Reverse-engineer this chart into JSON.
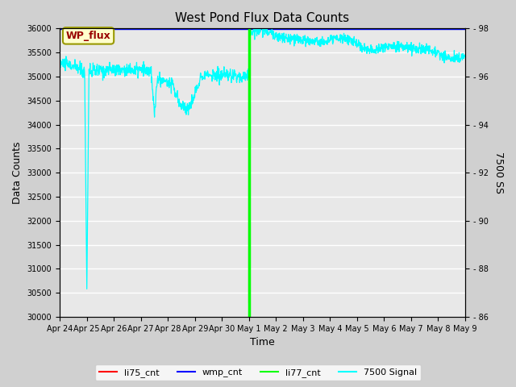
{
  "title": "West Pond Flux Data Counts",
  "xlabel": "Time",
  "ylabel_left": "Data Counts",
  "ylabel_right": "7500 SS",
  "ylim_left": [
    30000,
    36000
  ],
  "ylim_right": [
    86,
    98
  ],
  "yticks_left": [
    30000,
    30500,
    31000,
    31500,
    32000,
    32500,
    33000,
    33500,
    34000,
    34500,
    35000,
    35500,
    36000
  ],
  "yticks_right": [
    86,
    88,
    90,
    92,
    94,
    96,
    98
  ],
  "fig_bg_color": "#d0d0d0",
  "plot_bg_color": "#e8e8e8",
  "grid_color": "#ffffff",
  "annotation_text": "WP_flux",
  "annotation_bg": "#ffffcc",
  "annotation_border": "#999900",
  "annotation_color": "#990000",
  "legend_labels": [
    "li75_cnt",
    "wmp_cnt",
    "li77_cnt",
    "7500 Signal"
  ],
  "legend_colors": [
    "red",
    "blue",
    "lime",
    "cyan"
  ],
  "xtick_labels": [
    "Apr 24",
    "Apr 25",
    "Apr 26",
    "Apr 27",
    "Apr 28",
    "Apr 29",
    "Apr 30",
    "May 1",
    "May 2",
    "May 3",
    "May 4",
    "May 5",
    "May 6",
    "May 7",
    "May 8",
    "May 9"
  ],
  "tick_fontsize": 7,
  "label_fontsize": 9,
  "title_fontsize": 11
}
